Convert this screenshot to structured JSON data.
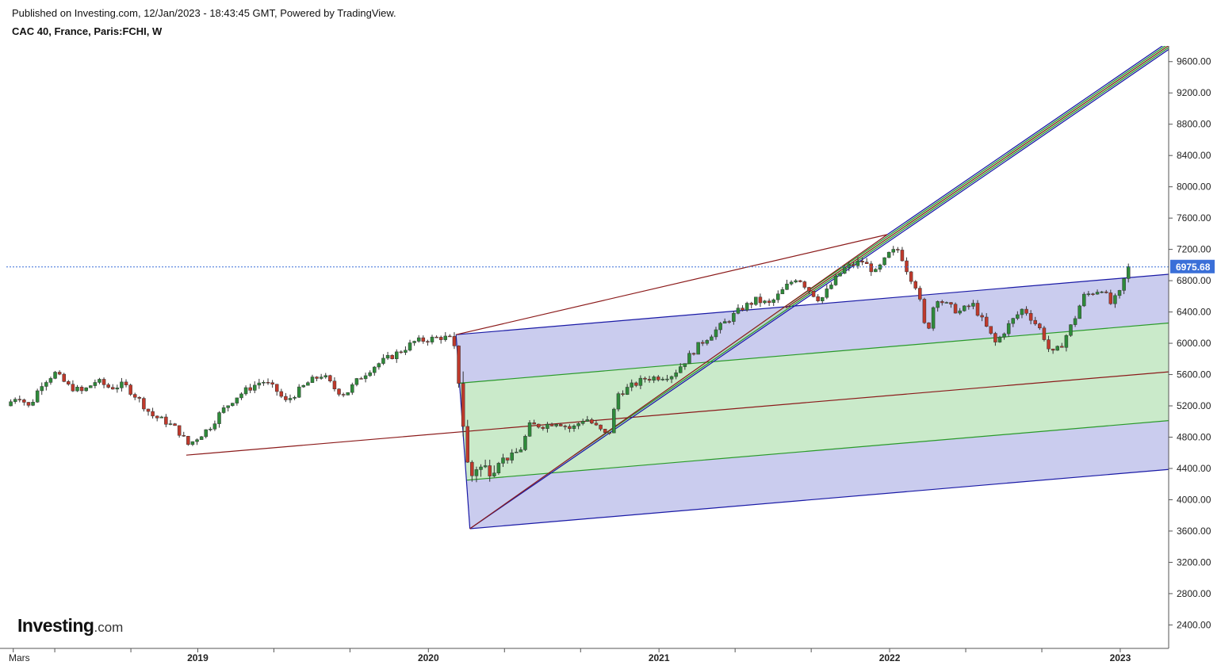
{
  "header": {
    "published": "Published on Investing.com, 12/Jan/2023 - 18:43:45 GMT, Powered by TradingView.",
    "title": "CAC 40, France, Paris:FCHI, W"
  },
  "logo": {
    "main": "Investing",
    "suffix": ".com"
  },
  "colors": {
    "up": "#2e8b3a",
    "down": "#c0392b",
    "blue_fill": "#9fa3e0",
    "green_fill": "#a6dca6",
    "blue_line": "#1a1aa6",
    "green_line": "#2a9a2a",
    "red_line": "#8b1a1a",
    "price_line": "#3a6fd8"
  },
  "chart_data": {
    "type": "candlestick",
    "title": "CAC 40, France, Paris:FCHI, W",
    "last_price": "6975.68",
    "ylim": [
      2100,
      9800
    ],
    "y_ticks": [
      "9600.00",
      "9200.00",
      "8800.00",
      "8400.00",
      "8000.00",
      "7600.00",
      "7200.00",
      "6800.00",
      "6400.00",
      "6000.00",
      "5600.00",
      "5200.00",
      "4800.00",
      "4400.00",
      "4000.00",
      "3600.00",
      "3200.00",
      "2800.00",
      "2400.00"
    ],
    "x_labels": [
      {
        "label": "Mars",
        "t": 2018.2,
        "bold": false
      },
      {
        "label": "2019",
        "t": 2019.0,
        "bold": true
      },
      {
        "label": "2020",
        "t": 2020.0,
        "bold": true
      },
      {
        "label": "2021",
        "t": 2021.0,
        "bold": true
      },
      {
        "label": "2022",
        "t": 2022.0,
        "bold": true
      },
      {
        "label": "2023",
        "t": 2023.0,
        "bold": true
      }
    ],
    "x_minor_ticks": [
      2018.38,
      2018.71,
      2019.33,
      2019.66,
      2020.33,
      2020.66,
      2021.33,
      2021.66,
      2022.33,
      2022.66
    ],
    "xlim": [
      2018.17,
      2023.21
    ],
    "price_path": [
      [
        2018.17,
        5200
      ],
      [
        2018.22,
        5340
      ],
      [
        2018.27,
        5180
      ],
      [
        2018.32,
        5480
      ],
      [
        2018.38,
        5620
      ],
      [
        2018.44,
        5450
      ],
      [
        2018.5,
        5380
      ],
      [
        2018.56,
        5520
      ],
      [
        2018.62,
        5430
      ],
      [
        2018.68,
        5470
      ],
      [
        2018.74,
        5300
      ],
      [
        2018.8,
        5080
      ],
      [
        2018.86,
        5000
      ],
      [
        2018.91,
        4900
      ],
      [
        2018.96,
        4700
      ],
      [
        2019.0,
        4800
      ],
      [
        2019.05,
        4920
      ],
      [
        2019.1,
        5120
      ],
      [
        2019.16,
        5300
      ],
      [
        2019.22,
        5420
      ],
      [
        2019.28,
        5520
      ],
      [
        2019.34,
        5400
      ],
      [
        2019.38,
        5250
      ],
      [
        2019.42,
        5350
      ],
      [
        2019.48,
        5500
      ],
      [
        2019.54,
        5600
      ],
      [
        2019.6,
        5400
      ],
      [
        2019.64,
        5350
      ],
      [
        2019.7,
        5550
      ],
      [
        2019.76,
        5700
      ],
      [
        2019.82,
        5800
      ],
      [
        2019.88,
        5900
      ],
      [
        2019.94,
        6020
      ],
      [
        2020.0,
        6050
      ],
      [
        2020.06,
        6080
      ],
      [
        2020.1,
        6050
      ],
      [
        2020.13,
        5600
      ],
      [
        2020.16,
        4700
      ],
      [
        2020.18,
        4200
      ],
      [
        2020.2,
        4450
      ],
      [
        2020.24,
        4380
      ],
      [
        2020.3,
        4500
      ],
      [
        2020.36,
        4550
      ],
      [
        2020.4,
        4650
      ],
      [
        2020.44,
        4950
      ],
      [
        2020.5,
        4950
      ],
      [
        2020.56,
        5000
      ],
      [
        2020.62,
        4900
      ],
      [
        2020.68,
        5050
      ],
      [
        2020.74,
        4900
      ],
      [
        2020.78,
        4800
      ],
      [
        2020.82,
        5350
      ],
      [
        2020.88,
        5450
      ],
      [
        2020.94,
        5550
      ],
      [
        2021.0,
        5570
      ],
      [
        2021.06,
        5600
      ],
      [
        2021.12,
        5800
      ],
      [
        2021.18,
        6000
      ],
      [
        2021.24,
        6150
      ],
      [
        2021.3,
        6300
      ],
      [
        2021.36,
        6450
      ],
      [
        2021.42,
        6550
      ],
      [
        2021.48,
        6500
      ],
      [
        2021.52,
        6620
      ],
      [
        2021.56,
        6750
      ],
      [
        2021.6,
        6850
      ],
      [
        2021.66,
        6650
      ],
      [
        2021.7,
        6550
      ],
      [
        2021.76,
        6800
      ],
      [
        2021.8,
        6950
      ],
      [
        2021.84,
        7000
      ],
      [
        2021.88,
        7050
      ],
      [
        2021.94,
        6900
      ],
      [
        2022.0,
        7150
      ],
      [
        2022.04,
        7200
      ],
      [
        2022.08,
        6900
      ],
      [
        2022.12,
        6700
      ],
      [
        2022.16,
        6100
      ],
      [
        2022.2,
        6600
      ],
      [
        2022.24,
        6500
      ],
      [
        2022.3,
        6400
      ],
      [
        2022.36,
        6500
      ],
      [
        2022.42,
        6200
      ],
      [
        2022.46,
        6000
      ],
      [
        2022.52,
        6250
      ],
      [
        2022.58,
        6450
      ],
      [
        2022.62,
        6300
      ],
      [
        2022.66,
        6150
      ],
      [
        2022.7,
        5850
      ],
      [
        2022.74,
        5950
      ],
      [
        2022.8,
        6300
      ],
      [
        2022.84,
        6600
      ],
      [
        2022.88,
        6650
      ],
      [
        2022.92,
        6700
      ],
      [
        2022.96,
        6500
      ],
      [
        2023.0,
        6650
      ],
      [
        2023.03,
        6950
      ],
      [
        2023.04,
        6975
      ]
    ],
    "pitchfork": {
      "p1": [
        2018.95,
        4570
      ],
      "p2": [
        2020.12,
        6110
      ],
      "p3": [
        2020.18,
        3630
      ],
      "p4": [
        2021.99,
        7390
      ],
      "p5": [
        2021.55,
        6450
      ]
    }
  }
}
